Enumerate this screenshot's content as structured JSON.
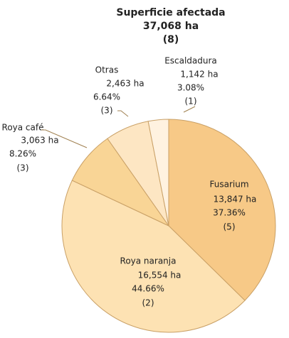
{
  "chart_data": {
    "type": "pie",
    "title": "Superficie afectada",
    "subtitle": [
      "37,068 ha",
      "(8)"
    ],
    "categories": [
      "Fusarium",
      "Roya naranja",
      "Roya café",
      "Otras",
      "Escaldadura"
    ],
    "values": [
      13847,
      16554,
      3063,
      2463,
      1142
    ],
    "value_labels": [
      "13,847 ha",
      "16,554 ha",
      "3,063 ha",
      "2,463 ha",
      "1,142 ha"
    ],
    "percents": [
      37.36,
      44.66,
      8.26,
      6.64,
      3.08
    ],
    "percent_labels": [
      "37.36%",
      "44.66%",
      "8.26%",
      "6.64%",
      "3.08%"
    ],
    "counts": [
      5,
      2,
      3,
      3,
      1
    ],
    "count_labels": [
      "(5)",
      "(2)",
      "(3)",
      "(3)",
      "(1)"
    ],
    "colors": [
      "#f7c987",
      "#fde2b3",
      "#f9d596",
      "#fde6c3",
      "#fff2e0"
    ]
  }
}
